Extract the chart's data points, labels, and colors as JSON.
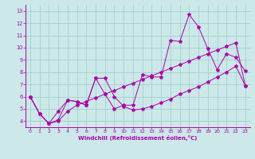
{
  "xlabel": "Windchill (Refroidissement éolien,°C)",
  "bg_color": "#cce8e8",
  "line_color": "#aa00aa",
  "grid_color": "#99cccc",
  "line1": {
    "x": [
      0,
      1,
      2,
      3,
      4,
      5,
      6,
      7,
      8,
      9,
      10,
      11,
      12,
      13,
      14,
      15,
      16,
      17,
      18,
      19,
      20,
      21,
      22,
      23
    ],
    "y": [
      6.0,
      4.6,
      3.8,
      4.1,
      5.7,
      5.6,
      5.3,
      7.5,
      7.5,
      6.0,
      5.2,
      4.9,
      5.0,
      5.2,
      5.5,
      5.8,
      6.2,
      6.5,
      6.8,
      7.2,
      7.6,
      8.0,
      8.5,
      6.9
    ]
  },
  "line2": {
    "x": [
      0,
      1,
      2,
      3,
      4,
      5,
      6,
      7,
      8,
      9,
      10,
      11,
      12,
      13,
      14,
      15,
      16,
      17,
      18,
      19,
      20,
      21,
      22,
      23
    ],
    "y": [
      6.0,
      4.6,
      3.8,
      4.8,
      5.7,
      5.6,
      5.3,
      7.5,
      6.2,
      5.0,
      5.3,
      5.3,
      7.8,
      7.6,
      7.6,
      10.6,
      10.5,
      12.7,
      11.7,
      9.9,
      8.2,
      9.5,
      9.2,
      8.1
    ]
  },
  "line3": {
    "x": [
      0,
      1,
      2,
      3,
      4,
      5,
      6,
      7,
      8,
      9,
      10,
      11,
      12,
      13,
      14,
      15,
      16,
      17,
      18,
      19,
      20,
      21,
      22,
      23
    ],
    "y": [
      6.0,
      4.6,
      3.8,
      4.0,
      4.8,
      5.3,
      5.6,
      5.9,
      6.2,
      6.5,
      6.8,
      7.1,
      7.4,
      7.7,
      8.0,
      8.3,
      8.6,
      8.9,
      9.2,
      9.5,
      9.8,
      10.1,
      10.4,
      6.9
    ]
  },
  "xlim": [
    -0.5,
    23.5
  ],
  "ylim": [
    3.5,
    13.5
  ],
  "yticks": [
    4,
    5,
    6,
    7,
    8,
    9,
    10,
    11,
    12,
    13
  ],
  "xticks": [
    0,
    1,
    2,
    3,
    4,
    5,
    6,
    7,
    8,
    9,
    10,
    11,
    12,
    13,
    14,
    15,
    16,
    17,
    18,
    19,
    20,
    21,
    22,
    23
  ]
}
